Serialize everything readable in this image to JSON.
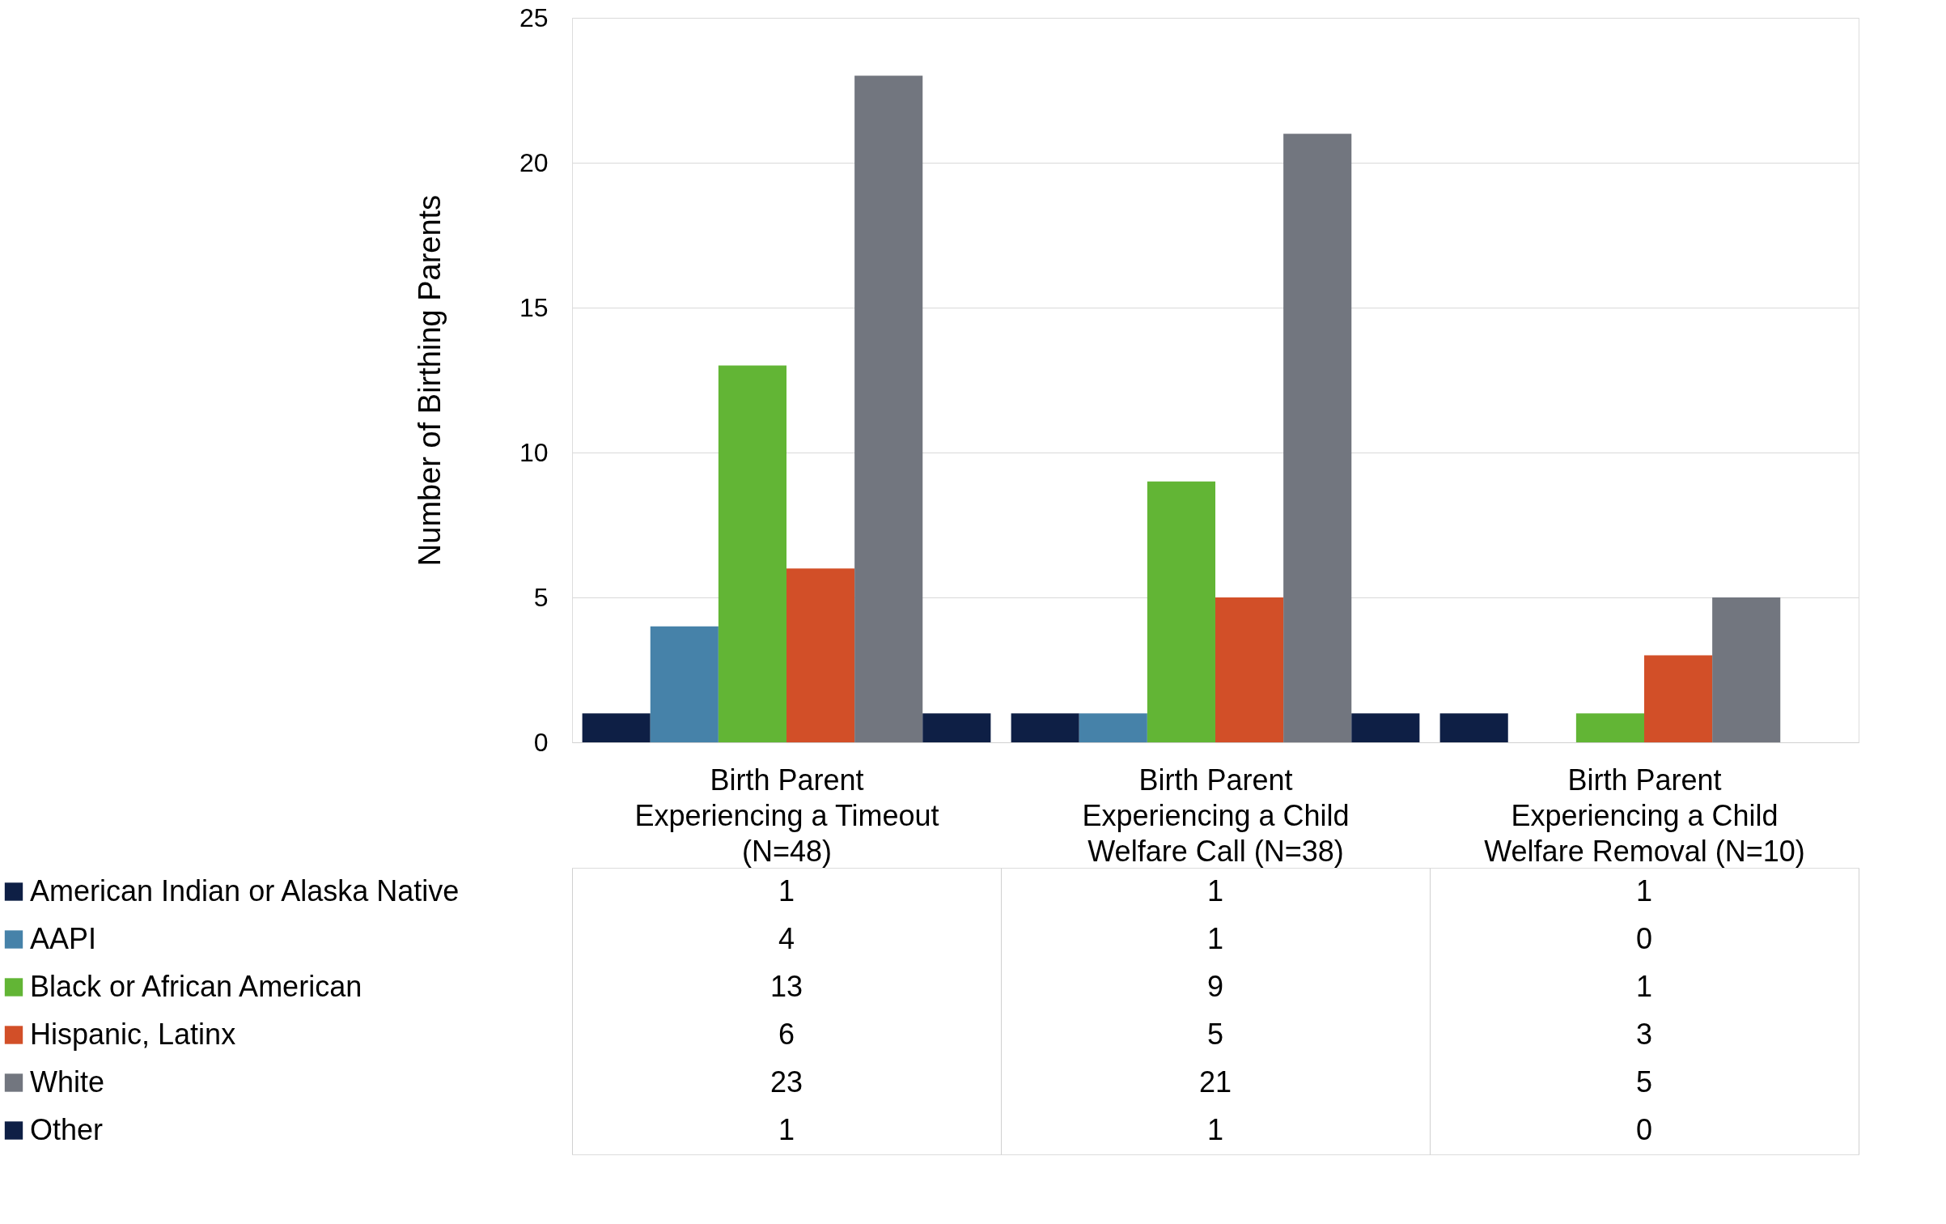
{
  "chart_data": {
    "type": "bar",
    "ylabel": "Number of Birthing Parents",
    "categories": [
      "Birth Parent Experiencing a Timeout (N=48)",
      "Birth Parent Experiencing a Child Welfare Call (N=38)",
      "Birth Parent Experiencing a Child Welfare Removal (N=10)"
    ],
    "series": [
      {
        "name": "American Indian or Alaska Native",
        "color": "#0e1f45",
        "values": [
          1,
          1,
          1
        ]
      },
      {
        "name": "AAPI",
        "color": "#4682a9",
        "values": [
          4,
          1,
          0
        ]
      },
      {
        "name": "Black or African American",
        "color": "#62b535",
        "values": [
          13,
          9,
          1
        ]
      },
      {
        "name": "Hispanic, Latinx",
        "color": "#d24f28",
        "values": [
          6,
          5,
          3
        ]
      },
      {
        "name": "White",
        "color": "#72767f",
        "values": [
          23,
          21,
          5
        ]
      },
      {
        "name": "Other",
        "color": "#0e1f45",
        "values": [
          1,
          1,
          0
        ]
      }
    ],
    "ylim": [
      0,
      25
    ],
    "yticks": [
      0,
      5,
      10,
      15,
      20,
      25
    ],
    "grid": "y",
    "data_labels": true,
    "legend": "bottom"
  }
}
